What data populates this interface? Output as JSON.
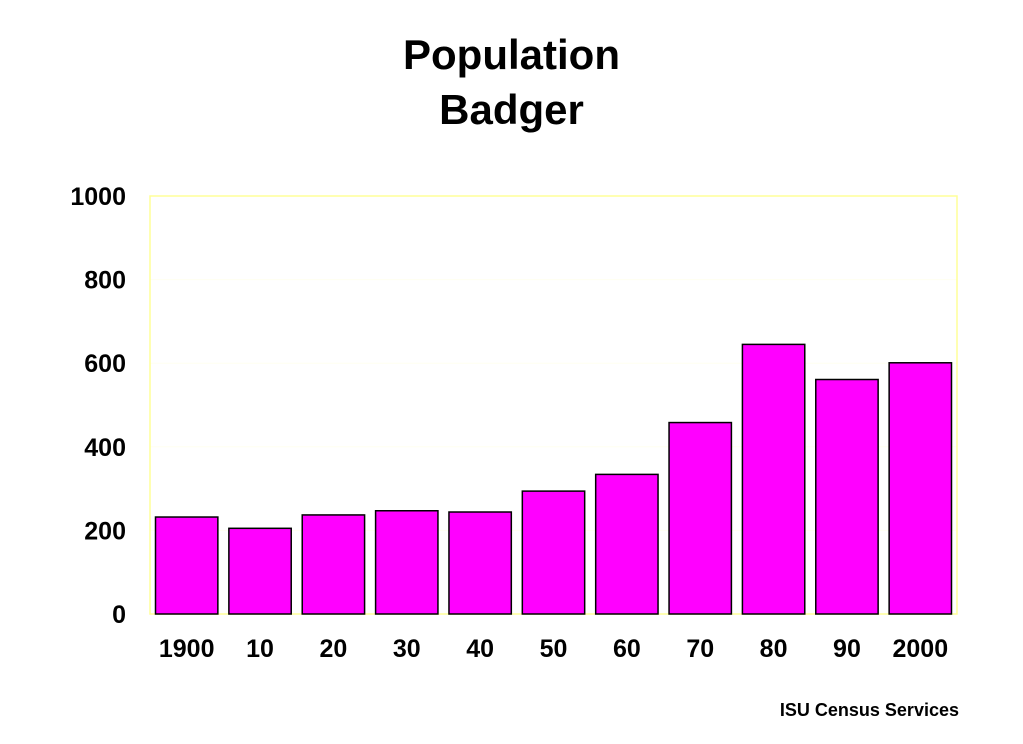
{
  "title_line_1": "Population",
  "title_line_2": "Badger",
  "credit": "ISU Census Services",
  "colors": {
    "bar_fill": "#ff00ff",
    "bar_stroke": "#000000",
    "plot_border": "#ffff99",
    "gridline": "#fffff0"
  },
  "chart_data": {
    "type": "bar",
    "title": "Population Badger",
    "xlabel": "",
    "ylabel": "",
    "categories": [
      "1900",
      "10",
      "20",
      "30",
      "40",
      "50",
      "60",
      "70",
      "80",
      "90",
      "2000"
    ],
    "values": [
      232,
      205,
      237,
      247,
      244,
      294,
      334,
      458,
      645,
      561,
      601
    ],
    "ylim": [
      0,
      1000
    ],
    "yticks": [
      "0",
      "200",
      "400",
      "600",
      "800",
      "1000"
    ],
    "grid": false,
    "legend": "none"
  }
}
